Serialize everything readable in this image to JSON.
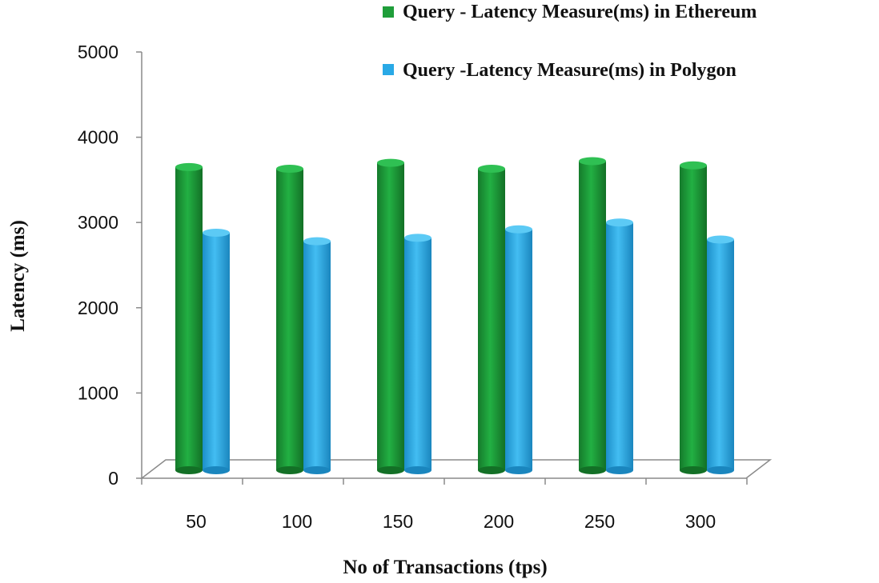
{
  "chart_data": {
    "type": "bar",
    "categories": [
      "50",
      "100",
      "150",
      "200",
      "250",
      "300"
    ],
    "series": [
      {
        "name": "Query - Latency Measure(ms) in Ethereum",
        "color": "#1f9e3a",
        "values": [
          3650,
          3630,
          3700,
          3630,
          3720,
          3670
        ]
      },
      {
        "name": "Query -Latency Measure(ms) in Polygon",
        "color": "#29a9e6",
        "values": [
          2880,
          2780,
          2820,
          2920,
          3000,
          2800
        ]
      }
    ],
    "xlabel": "No of Transactions (tps)",
    "ylabel": "Latency (ms)",
    "ylim": [
      0,
      5000
    ],
    "yticks": [
      "0",
      "1000",
      "2000",
      "3000",
      "4000",
      "5000"
    ],
    "grid": false,
    "legend_position": "top-right"
  }
}
